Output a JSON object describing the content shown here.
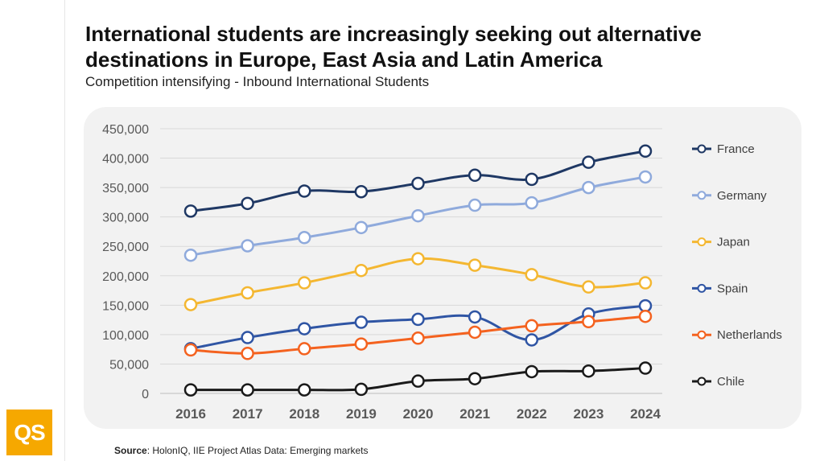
{
  "header": {
    "title": "International students are increasingly seeking out alternative destinations in Europe, East Asia and Latin America",
    "subtitle": "Competition intensifying - Inbound International Students"
  },
  "footer": {
    "source_label": "Source",
    "source_text": ": HolonIQ, IIE Project Atlas Data: Emerging markets"
  },
  "logo": {
    "text": "QS",
    "color": "#f6a800"
  },
  "chart_data": {
    "type": "line",
    "title": "Competition intensifying - Inbound International Students",
    "xlabel": "",
    "ylabel": "",
    "categories": [
      "2016",
      "2017",
      "2018",
      "2019",
      "2020",
      "2021",
      "2022",
      "2023",
      "2024"
    ],
    "ylim": [
      0,
      450000
    ],
    "yticks": [
      0,
      50000,
      100000,
      150000,
      200000,
      250000,
      300000,
      350000,
      400000,
      450000
    ],
    "ytick_labels": [
      "0",
      "50,000",
      "100,000",
      "150,000",
      "200,000",
      "250,000",
      "300,000",
      "350,000",
      "400,000",
      "450,000"
    ],
    "grid": true,
    "legend_position": "right",
    "series": [
      {
        "name": "France",
        "color": "#1f3864",
        "values": [
          310000,
          323000,
          344000,
          343000,
          357000,
          371000,
          364000,
          393000,
          412000
        ]
      },
      {
        "name": "Germany",
        "color": "#8faadc",
        "values": [
          235000,
          251000,
          265000,
          282000,
          302000,
          320000,
          324000,
          350000,
          368000
        ]
      },
      {
        "name": "Japan",
        "color": "#f4b731",
        "values": [
          151000,
          171000,
          188000,
          209000,
          229000,
          218000,
          202000,
          181000,
          188000
        ]
      },
      {
        "name": "Spain",
        "color": "#2f55a4",
        "values": [
          76000,
          95000,
          110000,
          121000,
          126000,
          130000,
          91000,
          135000,
          149000
        ]
      },
      {
        "name": "Netherlands",
        "color": "#f4621f",
        "values": [
          74000,
          68000,
          76000,
          84000,
          94000,
          104000,
          115000,
          122000,
          131000
        ]
      },
      {
        "name": "Chile",
        "color": "#1a1a1a",
        "values": [
          6000,
          6000,
          6000,
          7000,
          21000,
          25000,
          37000,
          38000,
          43000
        ]
      }
    ]
  }
}
